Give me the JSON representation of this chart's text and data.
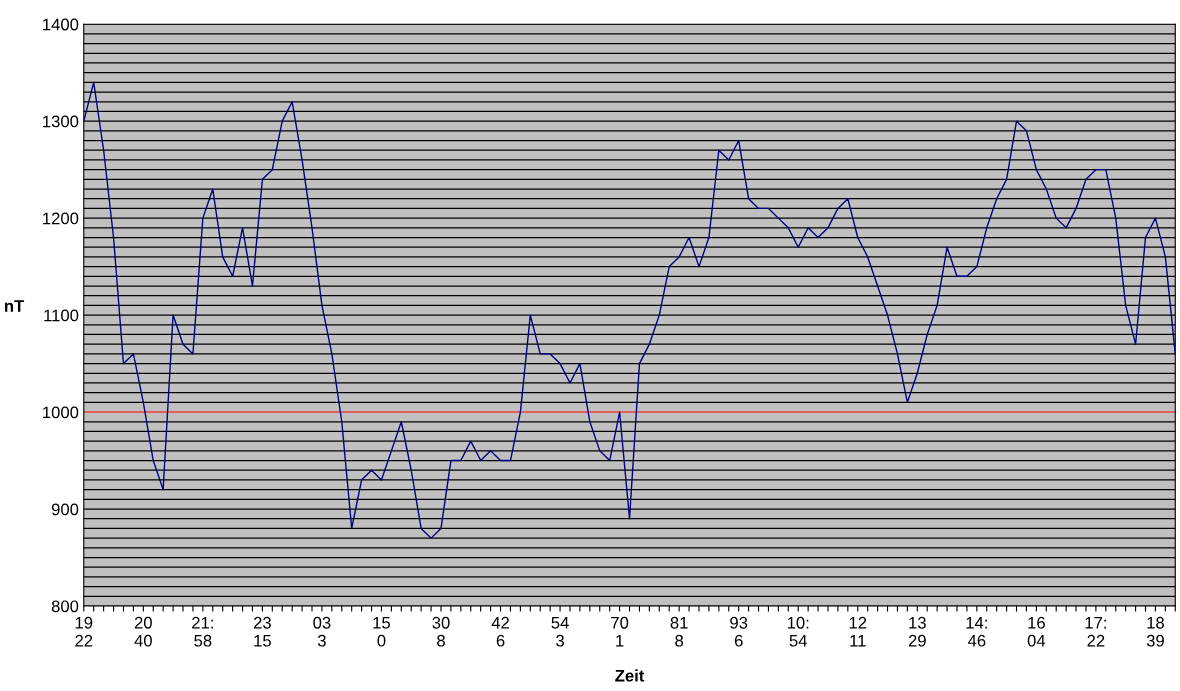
{
  "chart_data": {
    "type": "line",
    "xlabel": "Zeit",
    "ylabel": "nT",
    "categories": [
      "19\n22",
      null,
      null,
      null,
      null,
      null,
      "20\n40",
      null,
      null,
      null,
      null,
      null,
      "21:\n58",
      null,
      null,
      null,
      null,
      null,
      "23\n15",
      null,
      null,
      null,
      null,
      null,
      "03\n3",
      null,
      null,
      null,
      null,
      null,
      "15\n0",
      null,
      null,
      null,
      null,
      null,
      "30\n8",
      null,
      null,
      null,
      null,
      null,
      "42\n6",
      null,
      null,
      null,
      null,
      null,
      "54\n3",
      null,
      null,
      null,
      null,
      null,
      "70\n1",
      null,
      null,
      null,
      null,
      null,
      "81\n8",
      null,
      null,
      null,
      null,
      null,
      "93\n6",
      null,
      null,
      null,
      null,
      null,
      "10:\n54",
      null,
      null,
      null,
      null,
      null,
      "12\n11",
      null,
      null,
      null,
      null,
      null,
      "13\n29",
      null,
      null,
      null,
      null,
      null,
      "14:\n46",
      null,
      null,
      null,
      null,
      null,
      "16\n04",
      null,
      null,
      null,
      null,
      null,
      "17:\n22",
      null,
      null,
      null,
      null,
      null,
      "18\n39",
      null,
      null
    ],
    "series": [
      {
        "color": "#000080",
        "values": [
          1300,
          1340,
          1270,
          1180,
          1050,
          1060,
          1010,
          950,
          920,
          1100,
          1070,
          1060,
          1200,
          1230,
          1160,
          1140,
          1190,
          1130,
          1240,
          1250,
          1300,
          1320,
          1260,
          1190,
          1110,
          1060,
          990,
          880,
          930,
          940,
          930,
          960,
          990,
          940,
          880,
          870,
          880,
          950,
          950,
          970,
          950,
          960,
          950,
          950,
          1000,
          1100,
          1060,
          1060,
          1050,
          1030,
          1050,
          990,
          960,
          950,
          1000,
          890,
          1050,
          1070,
          1100,
          1150,
          1160,
          1180,
          1150,
          1180,
          1270,
          1260,
          1280,
          1220,
          1210,
          1210,
          1200,
          1190,
          1170,
          1190,
          1180,
          1190,
          1210,
          1220,
          1180,
          1160,
          1130,
          1100,
          1060,
          1010,
          1040,
          1080,
          1110,
          1170,
          1140,
          1140,
          1150,
          1190,
          1220,
          1240,
          1300,
          1290,
          1250,
          1230,
          1200,
          1190,
          1210,
          1240,
          1250,
          1250,
          1200,
          1110,
          1070,
          1180,
          1200,
          1160,
          1060
        ]
      }
    ],
    "ylim": [
      800,
      1400
    ],
    "yticks": [
      800,
      {
        "value": 810,
        "label": null
      },
      {
        "value": 820,
        "label": null
      },
      {
        "value": 830,
        "label": null
      },
      {
        "value": 840,
        "label": null
      },
      {
        "value": 850,
        "label": null
      },
      {
        "value": 860,
        "label": null
      },
      {
        "value": 870,
        "label": null
      },
      {
        "value": 880,
        "label": null
      },
      {
        "value": 890,
        "label": null
      },
      900,
      {
        "value": 910,
        "label": null
      },
      {
        "value": 920,
        "label": null
      },
      {
        "value": 930,
        "label": null
      },
      {
        "value": 940,
        "label": null
      },
      {
        "value": 950,
        "label": null
      },
      {
        "value": 960,
        "label": null
      },
      {
        "value": 970,
        "label": null
      },
      {
        "value": 980,
        "label": null
      },
      {
        "value": 990,
        "label": null
      },
      1000,
      {
        "value": 1010,
        "label": null
      },
      {
        "value": 1020,
        "label": null
      },
      {
        "value": 1030,
        "label": null
      },
      {
        "value": 1040,
        "label": null
      },
      {
        "value": 1050,
        "label": null
      },
      {
        "value": 1060,
        "label": null
      },
      {
        "value": 1070,
        "label": null
      },
      {
        "value": 1080,
        "label": null
      },
      {
        "value": 1090,
        "label": null
      },
      1100,
      {
        "value": 1110,
        "label": null
      },
      {
        "value": 1120,
        "label": null
      },
      {
        "value": 1130,
        "label": null
      },
      {
        "value": 1140,
        "label": null
      },
      {
        "value": 1150,
        "label": null
      },
      {
        "value": 1160,
        "label": null
      },
      {
        "value": 1170,
        "label": null
      },
      {
        "value": 1180,
        "label": null
      },
      {
        "value": 1190,
        "label": null
      },
      1200,
      {
        "value": 1210,
        "label": null
      },
      {
        "value": 1220,
        "label": null
      },
      {
        "value": 1230,
        "label": null
      },
      {
        "value": 1240,
        "label": null
      },
      {
        "value": 1250,
        "label": null
      },
      {
        "value": 1260,
        "label": null
      },
      {
        "value": 1270,
        "label": null
      },
      {
        "value": 1280,
        "label": null
      },
      {
        "value": 1290,
        "label": null
      },
      1300,
      {
        "value": 1310,
        "label": null
      },
      {
        "value": 1320,
        "label": null
      },
      {
        "value": 1330,
        "label": null
      },
      {
        "value": 1340,
        "label": null
      },
      {
        "value": 1350,
        "label": null
      },
      {
        "value": 1360,
        "label": null
      },
      {
        "value": 1370,
        "label": null
      },
      {
        "value": 1380,
        "label": null
      },
      {
        "value": 1390,
        "label": null
      },
      1400
    ],
    "grid": "y",
    "ref_lines": [
      {
        "axis": "y",
        "value": 1000,
        "color": "#e06060"
      }
    ],
    "legend": false
  }
}
